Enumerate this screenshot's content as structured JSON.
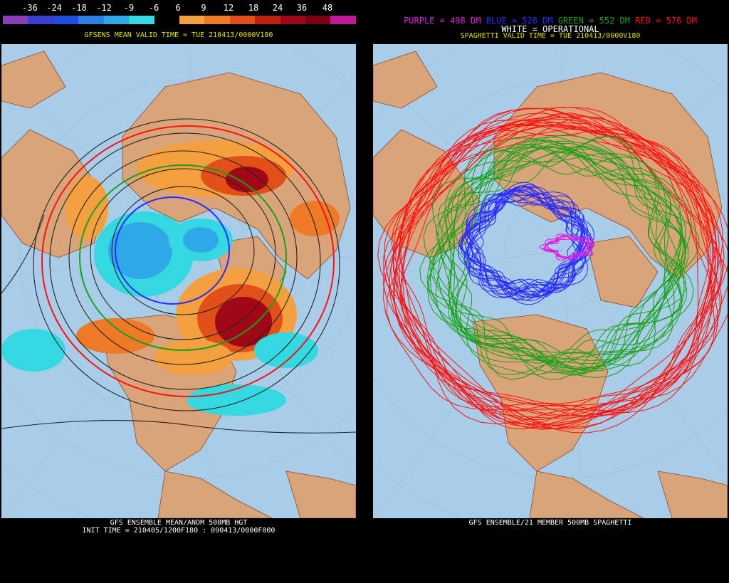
{
  "left": {
    "colorbar_ticks": [
      "-36",
      "-24",
      "-18",
      "-12",
      "-9",
      "-6",
      "6",
      "9",
      "12",
      "18",
      "24",
      "36",
      "48"
    ],
    "colorbar_colors": [
      "#8a3fb8",
      "#3a3fd0",
      "#1f4fe0",
      "#2f7fe8",
      "#2fa8e8",
      "#34d8e0",
      "#000000",
      "#f4a040",
      "#ee7a28",
      "#e05018",
      "#c02010",
      "#a00818",
      "#7a0010",
      "#c01898"
    ],
    "header": "GFSENS MEAN VALID TIME = TUE 210413/0000V180",
    "footer_line1": "GFS ENSEMBLE MEAN/ANOM 500MB HGT",
    "footer_line2": "INIT TIME = 210405/1200F180 : 090413/0000F000"
  },
  "right": {
    "legend": {
      "purple": "PURPLE = 498 DM",
      "blue": "BLUE = 528 DM",
      "green": "GREEN = 552 DM",
      "red": "RED = 576 DM"
    },
    "operational": "WHITE = OPERATIONAL",
    "header": "SPAGHETTI VALID TIME = TUE 210413/0000V180",
    "footer": "GFS ENSEMBLE/21 MEMBER 500MB SPAGHETTI"
  },
  "colors": {
    "ocean": "#a9cde8",
    "land": "#d9a47a",
    "header_text": "#e8e000",
    "purple": "#e020e0",
    "blue": "#2a2aff",
    "green": "#18a018",
    "red": "#ff1010"
  }
}
